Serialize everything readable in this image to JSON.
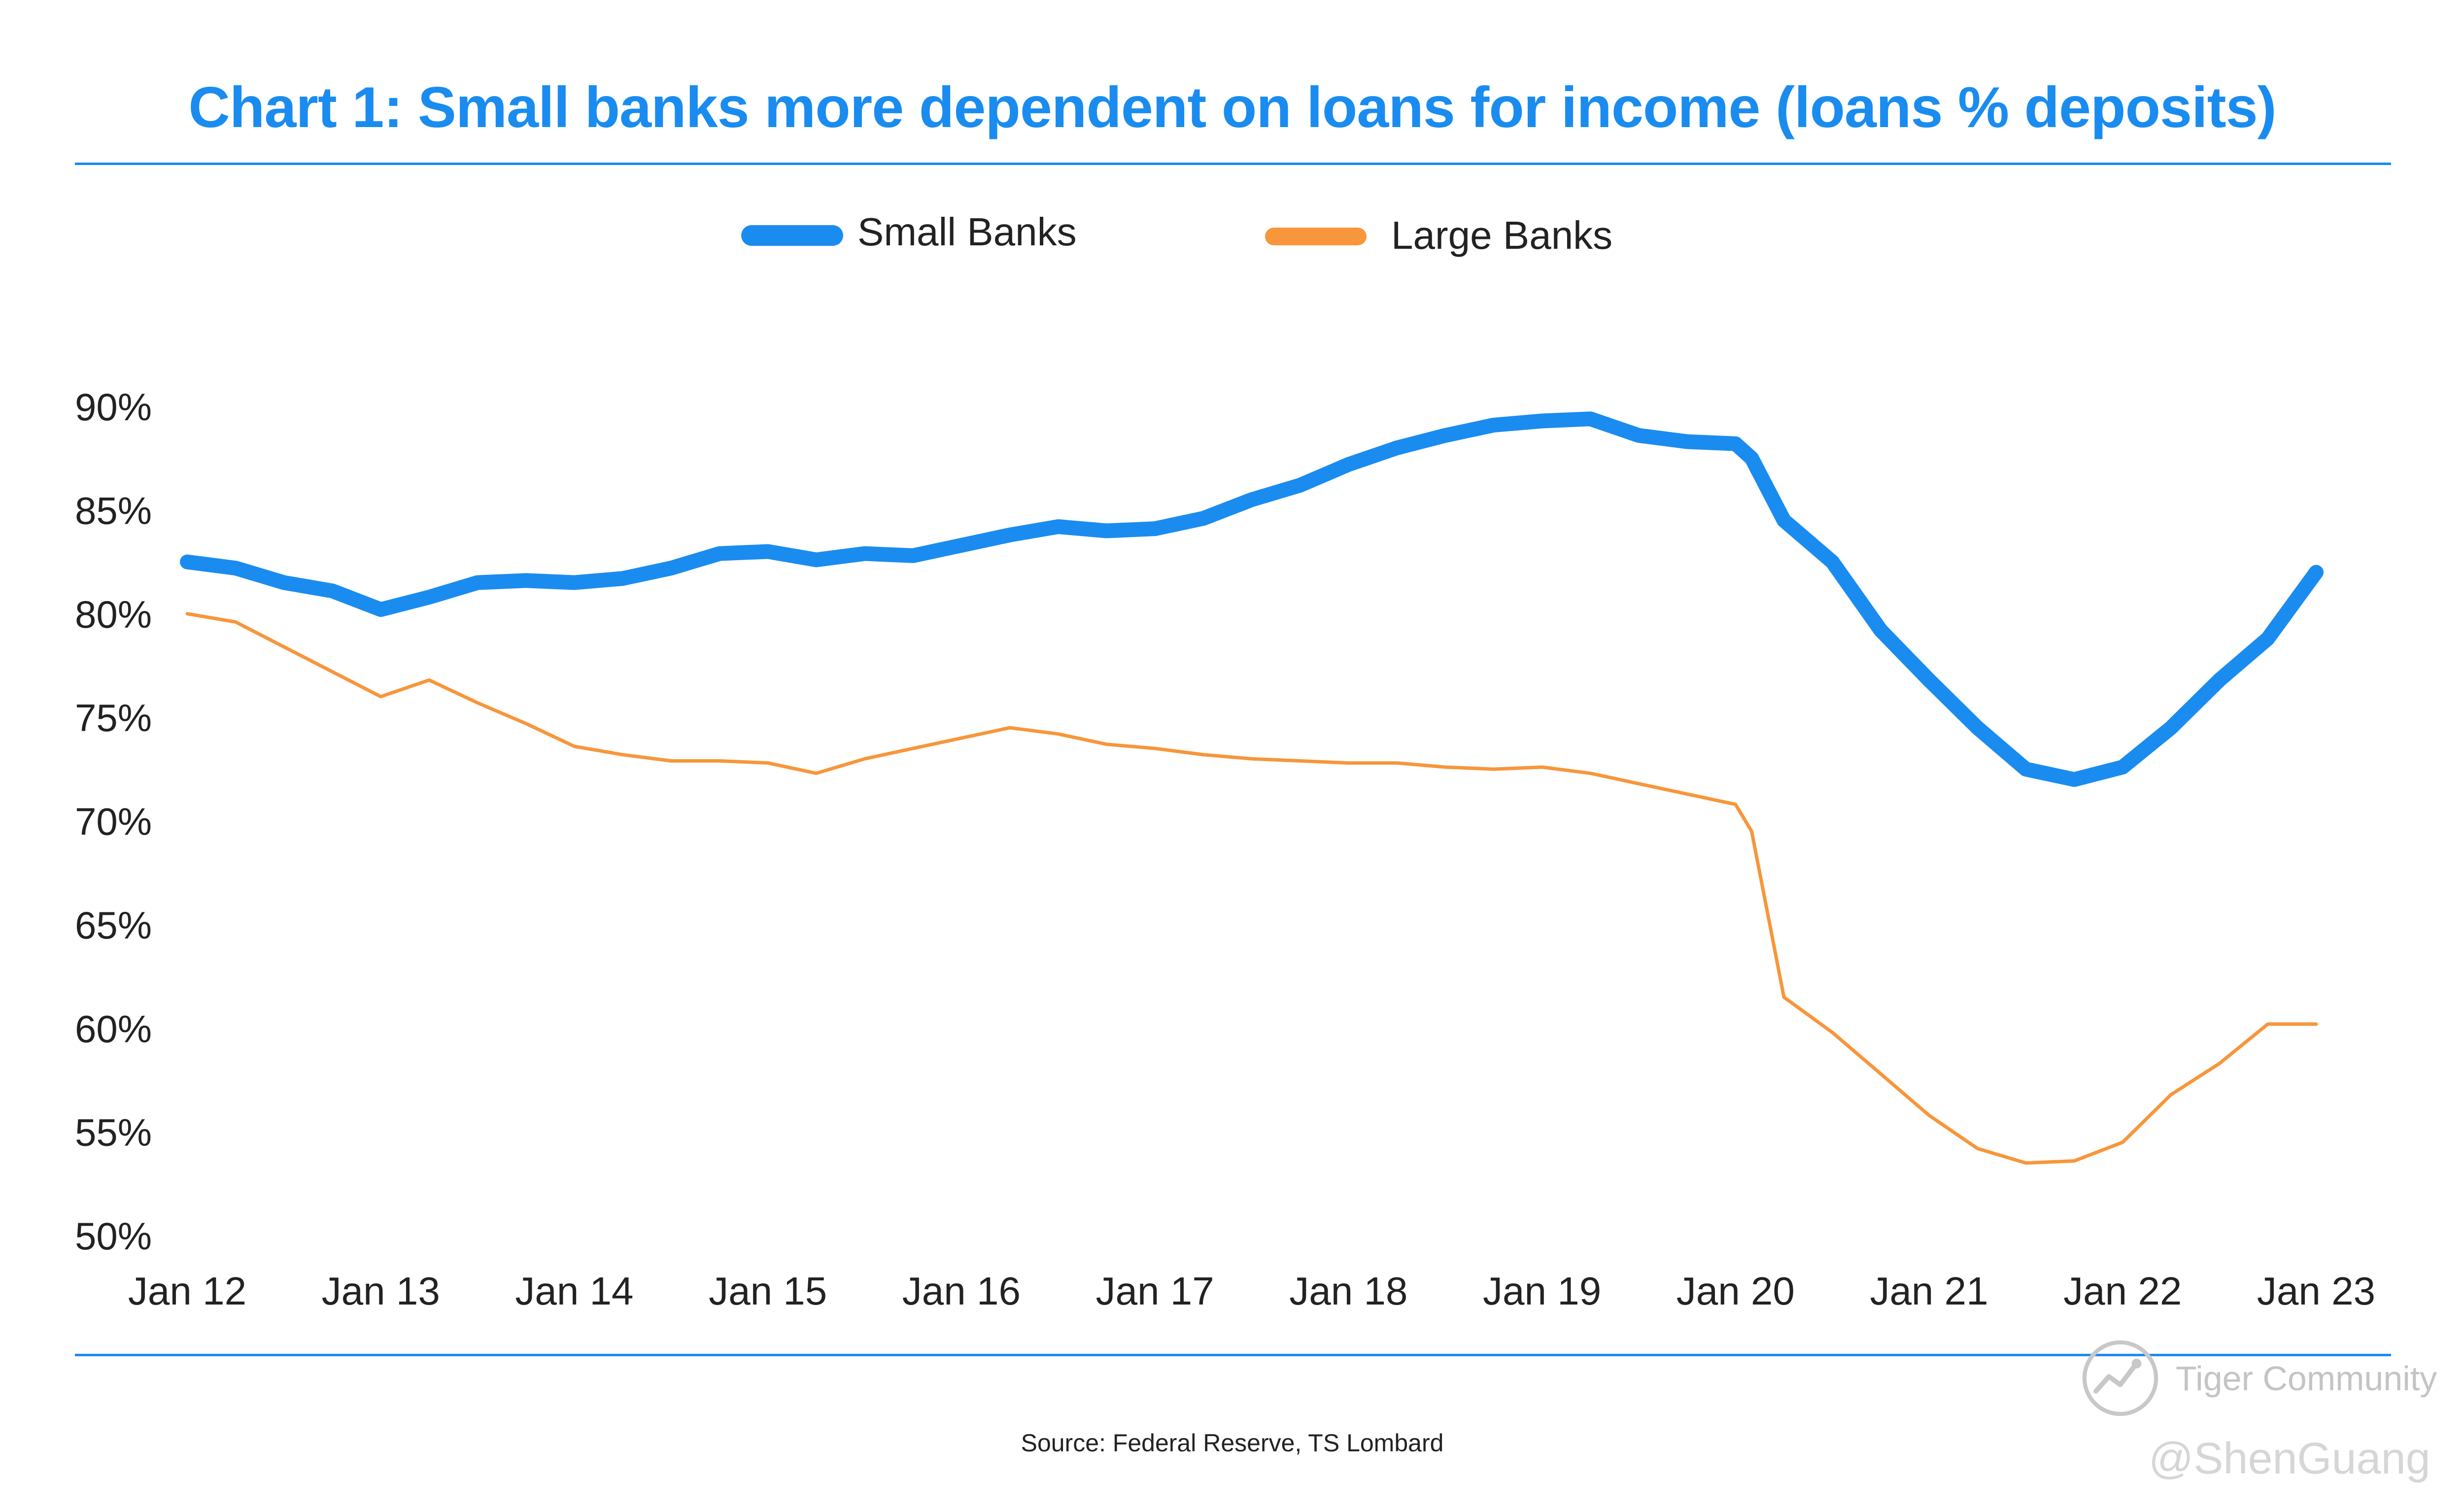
{
  "chart_data": {
    "type": "line",
    "title": "Chart 1: Small banks more dependent on loans for income (loans % deposits)",
    "xlabel": "",
    "ylabel": "",
    "x_ticks": [
      "Jan 12",
      "Jan 13",
      "Jan 14",
      "Jan 15",
      "Jan 16",
      "Jan 17",
      "Jan 18",
      "Jan 19",
      "Jan 20",
      "Jan 21",
      "Jan 22",
      "Jan 23"
    ],
    "y_ticks": [
      "90%",
      "85%",
      "80%",
      "75%",
      "70%",
      "65%",
      "60%",
      "55%",
      "50%"
    ],
    "xlim": [
      "2012-01",
      "2023-01"
    ],
    "ylim": [
      50,
      90
    ],
    "grid": false,
    "legend_position": "top-center",
    "x": [
      "2012-01",
      "2012-04",
      "2012-07",
      "2012-10",
      "2013-01",
      "2013-04",
      "2013-07",
      "2013-10",
      "2014-01",
      "2014-04",
      "2014-07",
      "2014-10",
      "2015-01",
      "2015-04",
      "2015-07",
      "2015-10",
      "2016-01",
      "2016-04",
      "2016-07",
      "2016-10",
      "2017-01",
      "2017-04",
      "2017-07",
      "2017-10",
      "2018-01",
      "2018-04",
      "2018-07",
      "2018-10",
      "2019-01",
      "2019-04",
      "2019-07",
      "2019-10",
      "2020-01",
      "2020-02",
      "2020-04",
      "2020-07",
      "2020-10",
      "2021-01",
      "2021-04",
      "2021-07",
      "2021-10",
      "2022-01",
      "2022-04",
      "2022-07",
      "2022-10",
      "2023-01"
    ],
    "series": [
      {
        "name": "Small Banks",
        "color": "#1a8cf0",
        "values": [
          82.5,
          82.2,
          81.5,
          81.1,
          80.2,
          80.8,
          81.5,
          81.6,
          81.5,
          81.7,
          82.2,
          82.9,
          83.0,
          82.6,
          82.9,
          82.8,
          83.3,
          83.8,
          84.2,
          84.0,
          84.1,
          84.6,
          85.5,
          86.2,
          87.2,
          88.0,
          88.6,
          89.1,
          89.3,
          89.4,
          88.6,
          88.3,
          88.2,
          87.5,
          84.5,
          82.5,
          79.2,
          76.8,
          74.5,
          72.5,
          72.0,
          72.6,
          74.5,
          76.8,
          78.8,
          82.0
        ]
      },
      {
        "name": "Large Banks",
        "color": "#f7963b",
        "values": [
          80.0,
          79.6,
          78.4,
          77.2,
          76.0,
          76.8,
          75.7,
          74.7,
          73.6,
          73.2,
          72.9,
          72.9,
          72.8,
          72.3,
          73.0,
          73.5,
          74.0,
          74.5,
          74.2,
          73.7,
          73.5,
          73.2,
          73.0,
          72.9,
          72.8,
          72.8,
          72.6,
          72.5,
          72.6,
          72.3,
          71.8,
          71.3,
          70.8,
          69.5,
          61.5,
          59.8,
          57.8,
          55.8,
          54.2,
          53.5,
          53.6,
          54.5,
          56.8,
          58.3,
          60.2,
          60.2
        ]
      }
    ]
  },
  "source": "Source: Federal Reserve, TS Lombard",
  "watermark": {
    "brand": "Tiger Community",
    "handle": "@ShenGuang",
    "icon": "tiger-community-logo-icon"
  }
}
